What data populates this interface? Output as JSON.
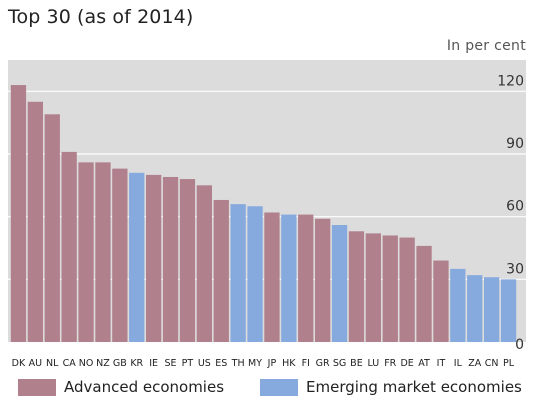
{
  "title": "Top 30 (as of 2014)",
  "unit_label": "In per cent",
  "colors": {
    "advanced": "#b0808c",
    "emerging": "#87aade",
    "plot_background": "#dcdcdc",
    "gridline": "#ffffff"
  },
  "legend": [
    {
      "label": "Advanced economies",
      "group": "advanced"
    },
    {
      "label": "Emerging market economies",
      "group": "emerging"
    }
  ],
  "chart_data": {
    "type": "bar",
    "title": "Top 30 (as of 2014)",
    "ylabel": "In per cent",
    "xlabel": "",
    "ylim": [
      0,
      135
    ],
    "yticks": [
      0,
      30,
      60,
      90,
      120
    ],
    "grid": true,
    "legend_position": "bottom",
    "categories": [
      "DK",
      "AU",
      "NL",
      "CA",
      "NO",
      "NZ",
      "GB",
      "KR",
      "IE",
      "SE",
      "PT",
      "US",
      "ES",
      "TH",
      "MY",
      "JP",
      "HK",
      "FI",
      "GR",
      "SG",
      "BE",
      "LU",
      "FR",
      "DE",
      "AT",
      "IT",
      "IL",
      "ZA",
      "CN",
      "PL"
    ],
    "values": [
      123,
      115,
      109,
      91,
      86,
      86,
      83,
      81,
      80,
      79,
      78,
      75,
      68,
      66,
      65,
      62,
      61,
      61,
      59,
      56,
      53,
      52,
      51,
      50,
      46,
      39,
      35,
      32,
      31,
      30
    ],
    "groups": [
      "advanced",
      "advanced",
      "advanced",
      "advanced",
      "advanced",
      "advanced",
      "advanced",
      "emerging",
      "advanced",
      "advanced",
      "advanced",
      "advanced",
      "advanced",
      "emerging",
      "emerging",
      "advanced",
      "emerging",
      "advanced",
      "advanced",
      "emerging",
      "advanced",
      "advanced",
      "advanced",
      "advanced",
      "advanced",
      "advanced",
      "emerging",
      "emerging",
      "emerging",
      "emerging"
    ],
    "series": [
      {
        "name": "Advanced economies",
        "group": "advanced"
      },
      {
        "name": "Emerging market economies",
        "group": "emerging"
      }
    ]
  }
}
